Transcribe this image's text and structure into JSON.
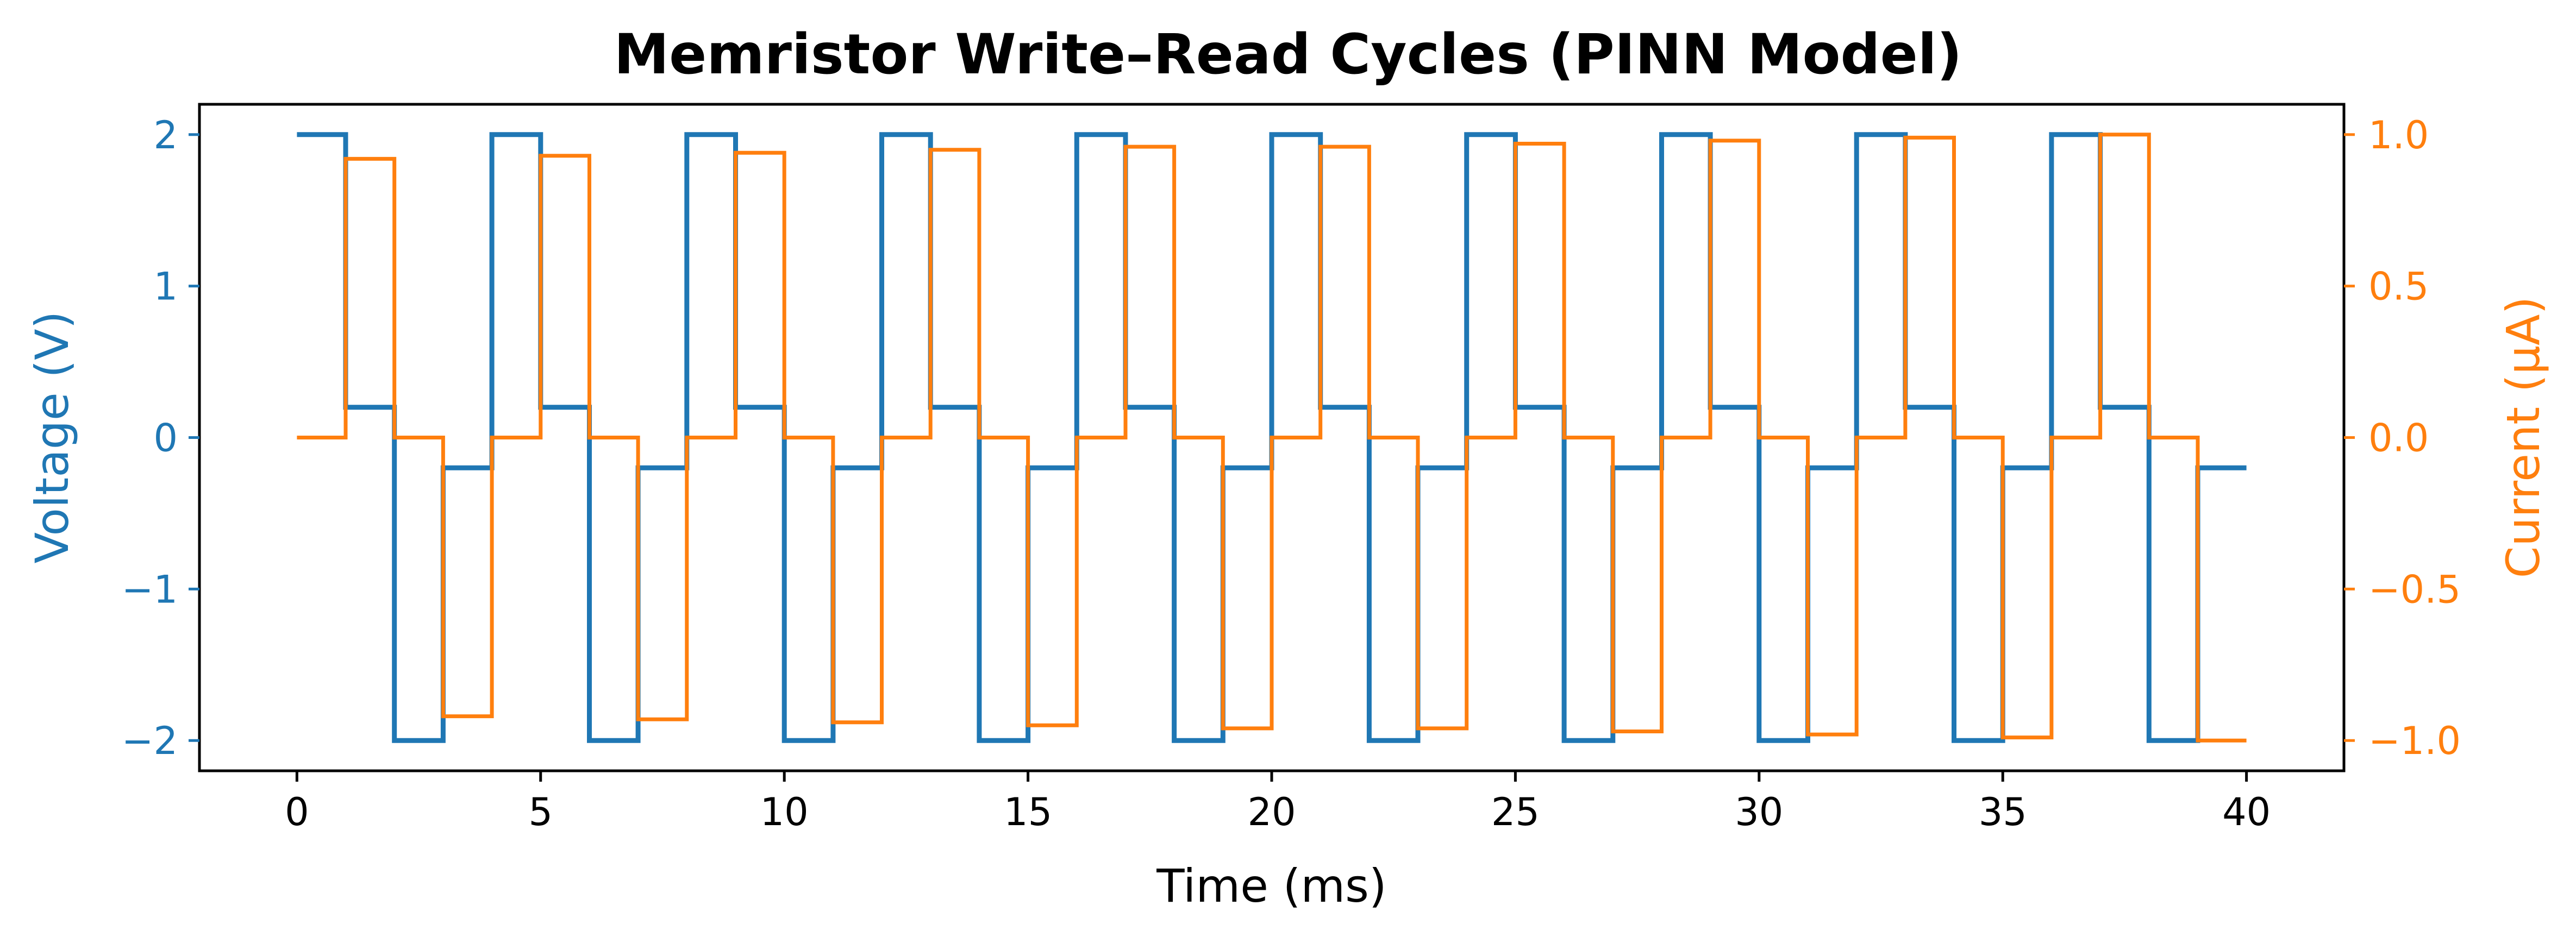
{
  "chart_data": {
    "type": "line",
    "title": "Memristor Write–Read Cycles (PINN Model)",
    "xlabel": "Time (ms)",
    "ylabel_left": "Voltage (V)",
    "ylabel_right": "Current (μA)",
    "xlim": [
      -2,
      42
    ],
    "ylim_left": [
      -2.2,
      2.2
    ],
    "ylim_right": [
      -1.1,
      1.1
    ],
    "x_ticks": [
      0,
      5,
      10,
      15,
      20,
      25,
      30,
      35,
      40
    ],
    "y_left_ticks": [
      -2,
      -1,
      0,
      1,
      2
    ],
    "y_left_tick_labels": [
      "−2",
      "−1",
      "0",
      "1",
      "2"
    ],
    "y_right_ticks": [
      -1.0,
      -0.5,
      0.0,
      0.5,
      1.0
    ],
    "y_right_tick_labels": [
      "−1.0",
      "−0.5",
      "0.0",
      "0.5",
      "1.0"
    ],
    "grid": false,
    "colors": {
      "voltage": "#1f77b4",
      "current": "#ff7f0e",
      "axes": "#000000"
    },
    "series": [
      {
        "axis": "left",
        "step": "post",
        "x": [
          0,
          1,
          2,
          3,
          4,
          5,
          6,
          7,
          8,
          9,
          10,
          11,
          12,
          13,
          14,
          15,
          16,
          17,
          18,
          19,
          20,
          21,
          22,
          23,
          24,
          25,
          26,
          27,
          28,
          29,
          30,
          31,
          32,
          33,
          34,
          35,
          36,
          37,
          38,
          39,
          40
        ],
        "values": [
          2,
          0.2,
          -2,
          -0.2,
          2,
          0.2,
          -2,
          -0.2,
          2,
          0.2,
          -2,
          -0.2,
          2,
          0.2,
          -2,
          -0.2,
          2,
          0.2,
          -2,
          -0.2,
          2,
          0.2,
          -2,
          -0.2,
          2,
          0.2,
          -2,
          -0.2,
          2,
          0.2,
          -2,
          -0.2,
          2,
          0.2,
          -2,
          -0.2,
          2,
          0.2,
          -2,
          -0.2,
          -0.2
        ]
      },
      {
        "axis": "right",
        "step": "post",
        "x": [
          0,
          1,
          2,
          3,
          4,
          5,
          6,
          7,
          8,
          9,
          10,
          11,
          12,
          13,
          14,
          15,
          16,
          17,
          18,
          19,
          20,
          21,
          22,
          23,
          24,
          25,
          26,
          27,
          28,
          29,
          30,
          31,
          32,
          33,
          34,
          35,
          36,
          37,
          38,
          39,
          40
        ],
        "values": [
          0,
          0.92,
          0,
          -0.92,
          0,
          0.93,
          0,
          -0.93,
          0,
          0.94,
          0,
          -0.94,
          0,
          0.95,
          0,
          -0.95,
          0,
          0.96,
          0,
          -0.96,
          0,
          0.96,
          0,
          -0.96,
          0,
          0.97,
          0,
          -0.97,
          0,
          0.98,
          0,
          -0.98,
          0,
          0.99,
          0,
          -0.99,
          0,
          1.0,
          0,
          -1.0,
          -1.0
        ]
      }
    ]
  }
}
